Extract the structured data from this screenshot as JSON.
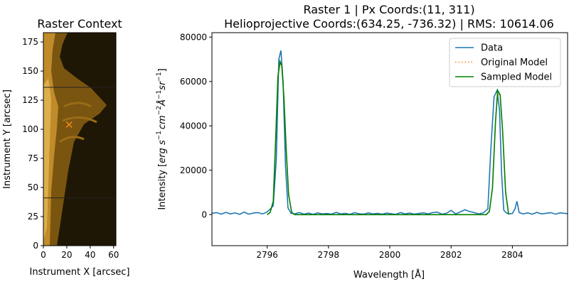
{
  "chart_data": [
    {
      "type": "heatmap",
      "title": "Raster Context",
      "xlabel": "Instrument X [arcsec]",
      "ylabel": "Instrument Y [arcsec]",
      "xlim": [
        0,
        62
      ],
      "ylim": [
        0,
        183
      ],
      "xticks": [
        "0",
        "20",
        "40",
        "60"
      ],
      "yticks": [
        "0",
        "25",
        "50",
        "75",
        "100",
        "125",
        "150",
        "175"
      ],
      "colormap_colors": [
        "#1c1504",
        "#3a2a06",
        "#6e4d0c",
        "#a87a1c",
        "#d9a93f"
      ],
      "marker": {
        "x": 22,
        "y": 104,
        "symbol": "x",
        "color": "#ff8c1a"
      },
      "horizontal_lines_y": [
        41,
        136
      ],
      "line_color": "#222222"
    },
    {
      "type": "line",
      "title_line1": "Raster 1 | Px Coords:(11, 311)",
      "title_line2": "Helioprojective Coords:(634.25, -736.32) | RMS: 10614.06",
      "xlabel": "Wavelength [Å]",
      "ylabel_parts": [
        "Intensity [",
        "erg s",
        "−1",
        "cm",
        "−2",
        "Å",
        "−1",
        "sr",
        "−1",
        "]"
      ],
      "xlim": [
        2794.2,
        2805.8
      ],
      "ylim": [
        -14000,
        82000
      ],
      "xticks": [
        "2796",
        "2798",
        "2800",
        "2802",
        "2804"
      ],
      "yticks": [
        "0",
        "20000",
        "40000",
        "60000",
        "80000"
      ],
      "legend_position": "top-right",
      "series": [
        {
          "name": "Data",
          "color": "#1f77b4",
          "style": "solid",
          "x": [
            2794.2,
            2794.35,
            2794.5,
            2794.65,
            2794.8,
            2794.95,
            2795.1,
            2795.25,
            2795.4,
            2795.55,
            2795.7,
            2795.85,
            2796.0,
            2796.1,
            2796.2,
            2796.3,
            2796.38,
            2796.45,
            2796.52,
            2796.6,
            2796.68,
            2796.78,
            2796.9,
            2797.05,
            2797.2,
            2797.35,
            2797.5,
            2797.65,
            2797.8,
            2797.95,
            2798.1,
            2798.25,
            2798.4,
            2798.55,
            2798.7,
            2798.85,
            2799.0,
            2799.15,
            2799.3,
            2799.45,
            2799.6,
            2799.75,
            2799.9,
            2800.05,
            2800.2,
            2800.35,
            2800.5,
            2800.65,
            2800.8,
            2800.95,
            2801.1,
            2801.25,
            2801.4,
            2801.55,
            2801.7,
            2801.85,
            2802.0,
            2802.15,
            2802.3,
            2802.45,
            2802.6,
            2802.75,
            2802.9,
            2803.05,
            2803.2,
            2803.3,
            2803.4,
            2803.5,
            2803.58,
            2803.65,
            2803.72,
            2803.8,
            2803.9,
            2804.0,
            2804.08,
            2804.15,
            2804.22,
            2804.35,
            2804.5,
            2804.65,
            2804.8,
            2804.95,
            2805.1,
            2805.25,
            2805.4,
            2805.55,
            2805.7,
            2805.8
          ],
          "y": [
            600,
            900,
            200,
            1000,
            300,
            800,
            100,
            1100,
            200,
            700,
            900,
            300,
            1200,
            2500,
            4000,
            25000,
            70000,
            74000,
            60000,
            22000,
            3000,
            600,
            300,
            900,
            200,
            700,
            100,
            800,
            300,
            500,
            200,
            1000,
            300,
            600,
            100,
            900,
            400,
            200,
            800,
            300,
            600,
            200,
            700,
            400,
            100,
            900,
            300,
            700,
            200,
            500,
            800,
            300,
            900,
            1100,
            200,
            600,
            1900,
            300,
            1200,
            2200,
            1400,
            900,
            300,
            800,
            2500,
            30000,
            53000,
            56000,
            47000,
            18000,
            2000,
            800,
            300,
            500,
            2500,
            6000,
            900,
            300,
            800,
            200,
            1000,
            300,
            600,
            900,
            200,
            800,
            600,
            400
          ]
        },
        {
          "name": "Original Model",
          "color": "#ff7f0e",
          "style": "dotted",
          "x": [
            2796.0,
            2796.1,
            2796.2,
            2796.28,
            2796.35,
            2796.42,
            2796.48,
            2796.55,
            2796.62,
            2796.7,
            2796.8,
            2796.9,
            2803.15,
            2803.25,
            2803.35,
            2803.45,
            2803.52,
            2803.6,
            2803.68,
            2803.78,
            2803.88
          ],
          "y": [
            0,
            1000,
            6000,
            35000,
            62000,
            68000,
            66000,
            52000,
            30000,
            9000,
            1000,
            0,
            0,
            1500,
            12000,
            42000,
            55000,
            53000,
            38000,
            10000,
            0
          ]
        },
        {
          "name": "Sampled Model",
          "color": "#008000",
          "style": "solid",
          "x": [
            2796.0,
            2796.1,
            2796.2,
            2796.28,
            2796.35,
            2796.42,
            2796.48,
            2796.55,
            2796.62,
            2796.7,
            2796.8,
            2796.9,
            2803.15,
            2803.25,
            2803.35,
            2803.45,
            2803.52,
            2803.6,
            2803.68,
            2803.78,
            2803.88
          ],
          "y": [
            0,
            1000,
            6000,
            35000,
            62000,
            69000,
            67000,
            52000,
            30000,
            9000,
            1000,
            0,
            0,
            1500,
            12000,
            42000,
            56000,
            54000,
            38000,
            10000,
            0
          ]
        }
      ]
    }
  ]
}
